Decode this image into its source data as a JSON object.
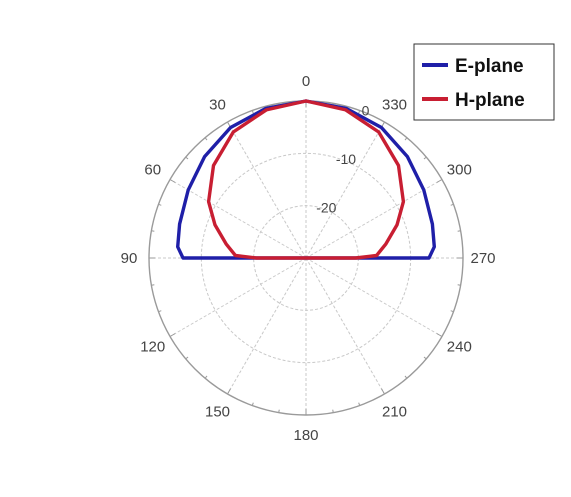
{
  "chart_data": {
    "type": "polar-line",
    "title": "",
    "angle_ticks": [
      "0",
      "30",
      "60",
      "90",
      "120",
      "150",
      "180",
      "210",
      "240",
      "270",
      "300",
      "330"
    ],
    "radial_ticks": [
      "0",
      "-10",
      "-20"
    ],
    "r_range": [
      -30,
      0
    ],
    "grid": true,
    "legend_position": "top-right",
    "series": [
      {
        "name": "E-plane",
        "color": "#1f1fa8",
        "points": [
          {
            "angle": 0,
            "db": 0.0
          },
          {
            "angle": 15,
            "db": -0.4
          },
          {
            "angle": 30,
            "db": -1.2
          },
          {
            "angle": 45,
            "db": -2.6
          },
          {
            "angle": 60,
            "db": -4.0
          },
          {
            "angle": 75,
            "db": -5.0
          },
          {
            "angle": 85,
            "db": -5.4
          },
          {
            "angle": 90,
            "db": -6.5
          },
          {
            "angle": 270,
            "db": -6.5
          },
          {
            "angle": 275,
            "db": -5.4
          },
          {
            "angle": 285,
            "db": -5.0
          },
          {
            "angle": 300,
            "db": -4.0
          },
          {
            "angle": 315,
            "db": -2.6
          },
          {
            "angle": 330,
            "db": -1.2
          },
          {
            "angle": 345,
            "db": -0.4
          },
          {
            "angle": 360,
            "db": 0.0
          }
        ]
      },
      {
        "name": "H-plane",
        "color": "#c81e32",
        "points": [
          {
            "angle": 0,
            "db": 0.0
          },
          {
            "angle": 15,
            "db": -0.7
          },
          {
            "angle": 30,
            "db": -2.2
          },
          {
            "angle": 45,
            "db": -5.0
          },
          {
            "angle": 60,
            "db": -8.5
          },
          {
            "angle": 70,
            "db": -11.5
          },
          {
            "angle": 80,
            "db": -14.5
          },
          {
            "angle": 88,
            "db": -16.5
          },
          {
            "angle": 90,
            "db": -20.5
          },
          {
            "angle": 270,
            "db": -20.5
          },
          {
            "angle": 272,
            "db": -16.5
          },
          {
            "angle": 280,
            "db": -14.5
          },
          {
            "angle": 290,
            "db": -11.5
          },
          {
            "angle": 300,
            "db": -8.5
          },
          {
            "angle": 315,
            "db": -5.0
          },
          {
            "angle": 330,
            "db": -2.2
          },
          {
            "angle": 345,
            "db": -0.7
          },
          {
            "angle": 360,
            "db": 0.0
          }
        ]
      }
    ]
  }
}
